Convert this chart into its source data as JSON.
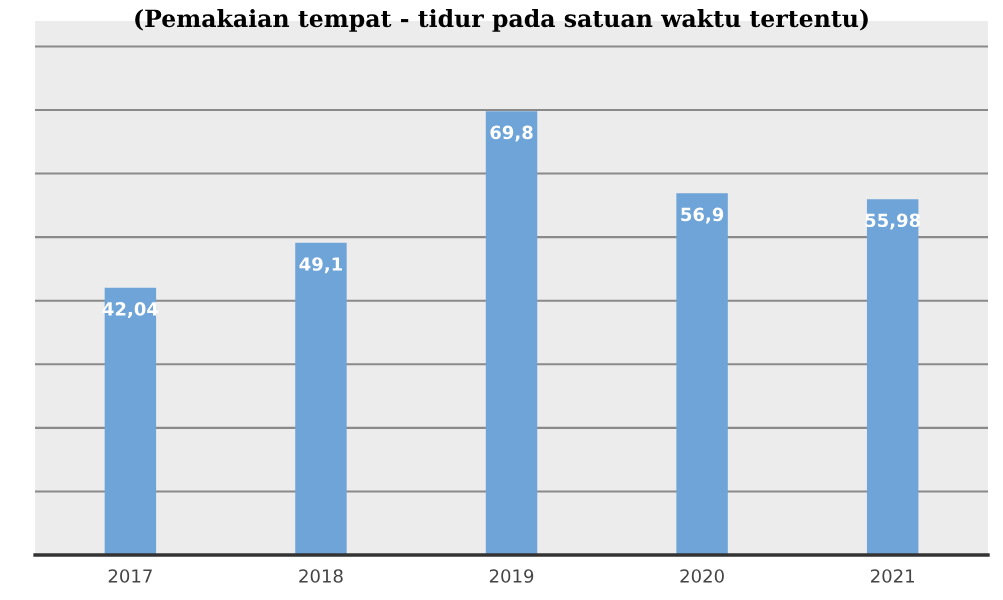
{
  "chart_data": {
    "type": "bar",
    "title": "(Pemakaian tempat - tidur pada satuan waktu tertentu)",
    "categories": [
      "2017",
      "2018",
      "2019",
      "2020",
      "2021"
    ],
    "values": [
      42.04,
      49.1,
      69.8,
      56.9,
      55.98
    ],
    "value_labels": [
      "42,04",
      "49,1",
      "69,8",
      "56,9",
      "55,98"
    ],
    "color": "#6fa4d8",
    "ylim": [
      0,
      84
    ],
    "yticks": [
      {
        "value": 0,
        "label": null
      },
      {
        "value": 10,
        "label": null
      },
      {
        "value": 20,
        "label": null
      },
      {
        "value": 30,
        "label": null
      },
      {
        "value": 40,
        "label": null
      },
      {
        "value": 50,
        "label": null
      },
      {
        "value": 60,
        "label": null
      },
      {
        "value": 70,
        "label": null
      },
      {
        "value": 80,
        "label": null
      }
    ],
    "grid": "y",
    "legend": false,
    "tick_labels": "x"
  }
}
